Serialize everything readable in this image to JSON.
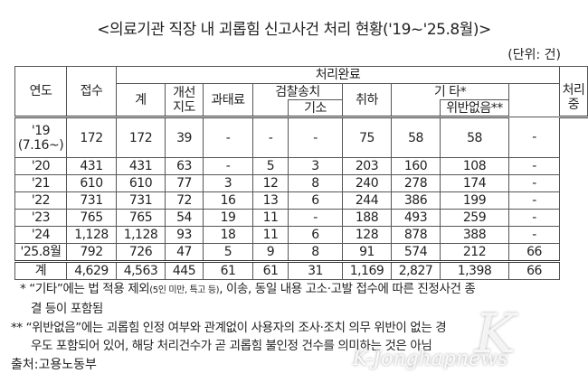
{
  "title": "<의료기관 직장 내 괴롭힘 신고사건 처리 현황('19~'25.8월)>",
  "unit": "(단위: 건)",
  "headers": {
    "year": "연도",
    "received": "접수",
    "completed": "처리완료",
    "in_progress": "처리중",
    "total": "계",
    "guidance": "개선\n지도",
    "fine": "과태료",
    "prosecution": "검찰송치",
    "indicted": "기소",
    "withdrawn": "취하",
    "other": "기 타*",
    "no_violation": "위반없음**"
  },
  "rows": [
    {
      "year": "'19\n(7.16~)",
      "cells": [
        "172",
        "172",
        "39",
        "-",
        "-",
        "-",
        "75",
        "58",
        "58",
        "-"
      ]
    },
    {
      "year": "'20",
      "cells": [
        "431",
        "431",
        "63",
        "-",
        "5",
        "3",
        "203",
        "160",
        "108",
        "-"
      ]
    },
    {
      "year": "'21",
      "cells": [
        "610",
        "610",
        "77",
        "3",
        "12",
        "8",
        "240",
        "278",
        "174",
        "-"
      ]
    },
    {
      "year": "'22",
      "cells": [
        "731",
        "731",
        "72",
        "16",
        "13",
        "6",
        "244",
        "386",
        "199",
        "-"
      ]
    },
    {
      "year": "'23",
      "cells": [
        "765",
        "765",
        "54",
        "19",
        "11",
        "-",
        "188",
        "493",
        "259",
        "-"
      ]
    },
    {
      "year": "'24",
      "cells": [
        "1,128",
        "1,128",
        "93",
        "18",
        "11",
        "6",
        "128",
        "878",
        "388",
        "-"
      ]
    },
    {
      "year": "'25.8월",
      "cells": [
        "792",
        "726",
        "47",
        "5",
        "9",
        "8",
        "91",
        "574",
        "212",
        "66"
      ]
    }
  ],
  "total_row": {
    "year": "계",
    "cells": [
      "4,629",
      "4,563",
      "445",
      "61",
      "61",
      "31",
      "1,169",
      "2,827",
      "1,398",
      "66"
    ]
  },
  "notes": {
    "n1_a": "* “기타”에는 법 적용 제외",
    "n1_small": "(5인 미만, 특고 등)",
    "n1_b": ", 이송, 동일 내용 고소·고발 접수에 따른 진정사건 종",
    "n1_c": "결 등이 포함됨",
    "n2_a": "** “위반없음”에는 괴롭힘 인정 여부와 관계없이 사용자의 조사·조치 의무 위반이 없는 경",
    "n2_b": "우도 포함되어 있어, 해당 처리건수가 곧 괴롭힘 불인정 건수를 의미하는 것은 아님"
  },
  "source": "출처:고용노동부",
  "watermark": "K-Jonghapnews"
}
